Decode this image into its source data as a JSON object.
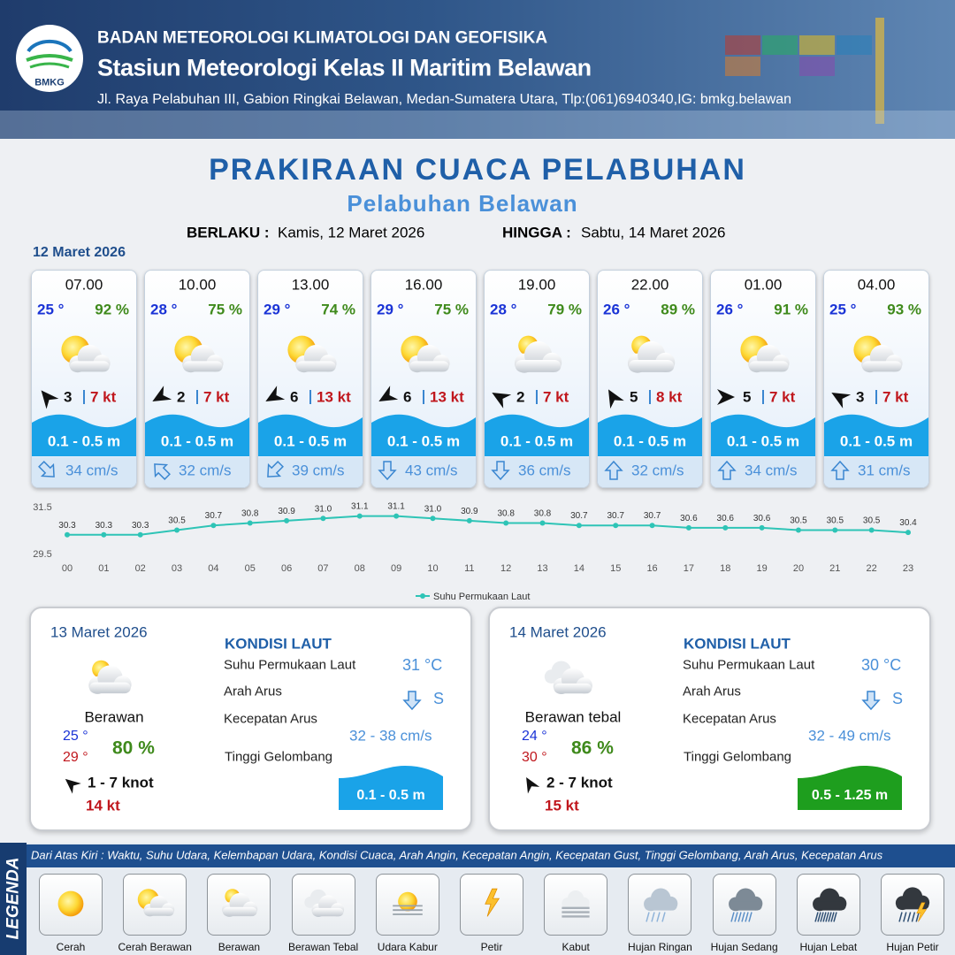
{
  "header": {
    "logo_text": "BMKG",
    "organization": "BADAN METEOROLOGI KLIMATOLOGI DAN GEOFISIKA",
    "station": "Stasiun Meteorologi Kelas II Maritim Belawan",
    "address": "Jl. Raya Pelabuhan III, Gabion Ringkai Belawan, Medan-Sumatera Utara, Tlp:(061)6940340,IG: bmkg.belawan"
  },
  "title": "PRAKIRAAN CUACA PELABUHAN",
  "subtitle": "Pelabuhan Belawan",
  "validity": {
    "from_label": "BERLAKU :",
    "from": "Kamis, 12 Maret 2026",
    "to_label": "HINGGA :",
    "to": "Sabtu, 14 Maret 2026"
  },
  "today": {
    "date": "12 Maret 2026",
    "slots": [
      {
        "time": "07.00",
        "temperature": "25 °",
        "humidity": "92 %",
        "wind_speed": "3",
        "gust": "7 kt",
        "wave": "0.1 - 0.5 m",
        "current": "34 cm/s"
      },
      {
        "time": "10.00",
        "temperature": "28 °",
        "humidity": "75 %",
        "wind_speed": "2",
        "gust": "7 kt",
        "wave": "0.1 - 0.5 m",
        "current": "32 cm/s"
      },
      {
        "time": "13.00",
        "temperature": "29 °",
        "humidity": "74 %",
        "wind_speed": "6",
        "gust": "13 kt",
        "wave": "0.1 - 0.5 m",
        "current": "39 cm/s"
      },
      {
        "time": "16.00",
        "temperature": "29 °",
        "humidity": "75 %",
        "wind_speed": "6",
        "gust": "13 kt",
        "wave": "0.1 - 0.5 m",
        "current": "43 cm/s"
      },
      {
        "time": "19.00",
        "temperature": "28 °",
        "humidity": "79 %",
        "wind_speed": "2",
        "gust": "7 kt",
        "wave": "0.1 - 0.5 m",
        "current": "36 cm/s"
      },
      {
        "time": "22.00",
        "temperature": "26 °",
        "humidity": "89 %",
        "wind_speed": "5",
        "gust": "8 kt",
        "wave": "0.1 - 0.5 m",
        "current": "32 cm/s"
      },
      {
        "time": "01.00",
        "temperature": "26 °",
        "humidity": "91 %",
        "wind_speed": "5",
        "gust": "7 kt",
        "wave": "0.1 - 0.5 m",
        "current": "34 cm/s"
      },
      {
        "time": "04.00",
        "temperature": "25 °",
        "humidity": "93 %",
        "wind_speed": "3",
        "gust": "7 kt",
        "wave": "0.1 - 0.5 m",
        "current": "31 cm/s"
      }
    ]
  },
  "sst_chart": {
    "type": "line",
    "categories": [
      "00",
      "01",
      "02",
      "03",
      "04",
      "05",
      "06",
      "07",
      "08",
      "09",
      "10",
      "11",
      "12",
      "13",
      "14",
      "15",
      "16",
      "17",
      "18",
      "19",
      "20",
      "21",
      "22",
      "23"
    ],
    "series": [
      {
        "name": "Suhu Permukaan Laut",
        "color": "#2ec4b6",
        "values": [
          30.3,
          30.3,
          30.3,
          30.5,
          30.7,
          30.8,
          30.9,
          31.0,
          31.1,
          31.1,
          31.0,
          30.9,
          30.8,
          30.8,
          30.7,
          30.7,
          30.7,
          30.6,
          30.6,
          30.6,
          30.5,
          30.5,
          30.5,
          30.4
        ],
        "value_labels": [
          "30.3",
          "30.3",
          "30.3",
          "30.5",
          "30.7",
          "30.8",
          "30.9",
          "31.0",
          "31.1",
          "31.1",
          "31.0",
          "30.9",
          "30.8",
          "30.8",
          "30.7",
          "30.7",
          "30.7",
          "30.6",
          "30.6",
          "30.6",
          "30.5",
          "30.5",
          "30.5",
          "30.4"
        ]
      }
    ],
    "ylim": [
      29.5,
      31.5
    ],
    "yticks": [
      29.5,
      31.5
    ]
  },
  "outlook": [
    {
      "date": "13 Maret 2026",
      "condition": "Berawan",
      "temp_min": "25 °",
      "temp_max": "29 °",
      "humidity": "80 %",
      "wind": "1 - 7 knot",
      "gust": "14 kt",
      "sea_heading": "KONDISI LAUT",
      "sst_label": "Suhu Permukaan Laut",
      "sst": "31 °C",
      "current_dir_label": "Arah Arus",
      "current_dir": "S",
      "current_speed_label": "Kecepatan Arus",
      "current_speed": "32 - 38 cm/s",
      "wave_label": "Tinggi Gelombang",
      "wave": "0.1 - 0.5 m",
      "wave_color": "#1aa3e8"
    },
    {
      "date": "14 Maret 2026",
      "condition": "Berawan tebal",
      "temp_min": "24 °",
      "temp_max": "30 °",
      "humidity": "86 %",
      "wind": "2 - 7 knot",
      "gust": "15 kt",
      "sea_heading": "KONDISI LAUT",
      "sst_label": "Suhu Permukaan Laut",
      "sst": "30 °C",
      "current_dir_label": "Arah Arus",
      "current_dir": "S",
      "current_speed_label": "Kecepatan Arus",
      "current_speed": "32  - 49 cm/s",
      "wave_label": "Tinggi Gelombang",
      "wave": "0.5 - 1.25 m",
      "wave_color": "#1e9e1e"
    }
  ],
  "legend": {
    "label": "LEGENDA",
    "description": "Dari Atas Kiri : Waktu, Suhu Udara, Kelembapan Udara, Kondisi Cuaca, Arah Angin, Kecepatan Angin, Kecepatan Gust, Tinggi Gelombang, Arah Arus, Kecepatan Arus",
    "items": [
      "Cerah",
      "Cerah Berawan",
      "Berawan",
      "Berawan Tebal",
      "Udara Kabur",
      "Petir",
      "Kabut",
      "Hujan Ringan",
      "Hujan Sedang",
      "Hujan Lebat",
      "Hujan Petir"
    ]
  }
}
